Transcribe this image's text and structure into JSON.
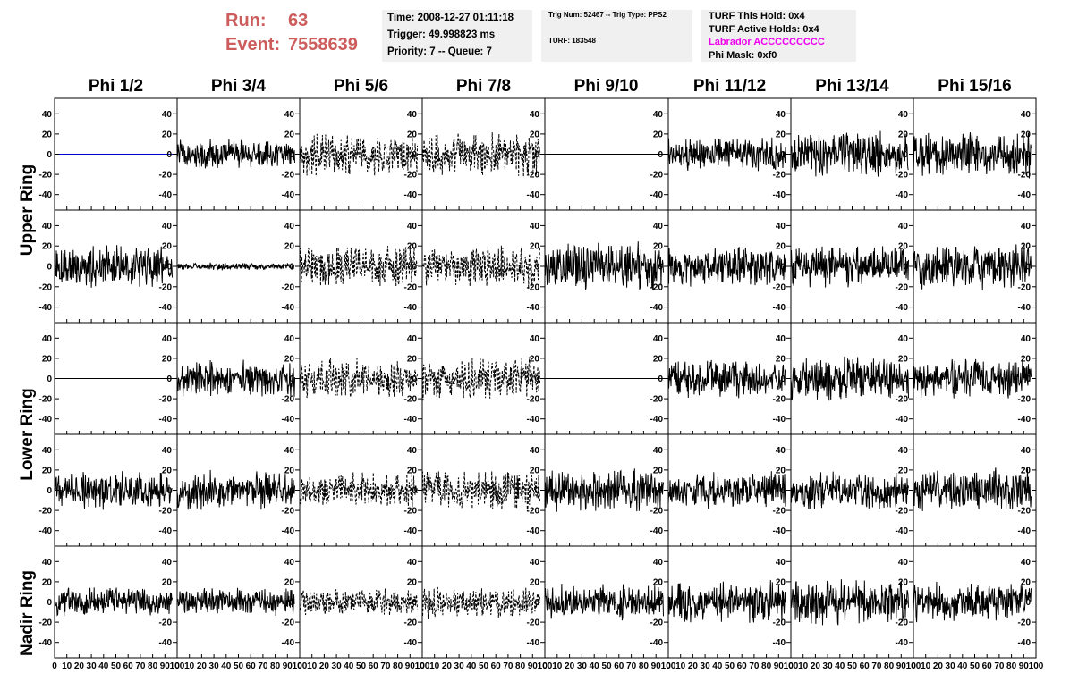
{
  "header": {
    "run_label": "Run:",
    "run_value": "63",
    "event_label": "Event:",
    "event_value": "7558639",
    "time": "Time: 2008-12-27 01:11:18",
    "trigger": "Trigger: 49.998823 ms",
    "priority": "Priority: 7 -- Queue: 7",
    "trig_num": "Trig Num: 52467 -- Trig Type: PPS2",
    "turf": "TURF: 183548",
    "turf_this_hold": "TURF This Hold: 0x4",
    "turf_active_holds": "TURF Active Holds: 0x4",
    "labrador": "Labrador ACCCCCCCCC",
    "phi_mask": "Phi Mask: 0xf0"
  },
  "colors": {
    "run_text": "#cd5c5c",
    "labrador_text": "#ee00ee",
    "flat_trace": "#0000cc",
    "trace": "#000000",
    "info_bg": "#f0f0f0"
  },
  "row_labels": [
    {
      "text": "Upper Ring",
      "rows": [
        0,
        1
      ]
    },
    {
      "text": "Lower Ring",
      "rows": [
        2,
        3
      ]
    },
    {
      "text": "Nadir Ring",
      "rows": [
        4
      ]
    }
  ],
  "chart_data": {
    "type": "line",
    "title": "",
    "columns": [
      "Phi 1/2",
      "Phi 3/4",
      "Phi 5/6",
      "Phi 7/8",
      "Phi 9/10",
      "Phi 11/12",
      "Phi 13/14",
      "Phi 15/16"
    ],
    "rows": 5,
    "xlim": [
      0,
      100
    ],
    "ylim": [
      -50,
      50
    ],
    "x_ticks": [
      0,
      10,
      20,
      30,
      40,
      50,
      60,
      70,
      80,
      90,
      100
    ],
    "y_ticks": [
      -40,
      -20,
      0,
      20,
      40
    ],
    "x_tick_labels": [
      "0",
      "10",
      "20",
      "30",
      "40",
      "50",
      "60",
      "70",
      "80",
      "90",
      "100"
    ],
    "y_tick_labels": [
      "-40",
      "-20",
      "0",
      "20",
      "40"
    ],
    "trace_samples": 260,
    "trace_x_range": [
      0,
      96
    ],
    "panels": [
      [
        {
          "col": "Phi 1/2",
          "style": "flat",
          "color": "#0000cc",
          "amp": 0
        },
        {
          "col": "Phi 3/4",
          "style": "solid",
          "amp": 10
        },
        {
          "col": "Phi 5/6",
          "style": "dashed",
          "amp": 15
        },
        {
          "col": "Phi 7/8",
          "style": "dashed",
          "amp": 14
        },
        {
          "col": "Phi 9/10",
          "style": "flat",
          "color": "#000000",
          "amp": 0
        },
        {
          "col": "Phi 11/12",
          "style": "solid",
          "amp": 12
        },
        {
          "col": "Phi 13/14",
          "style": "solid",
          "amp": 15
        },
        {
          "col": "Phi 15/16",
          "style": "solid",
          "amp": 15
        }
      ],
      [
        {
          "col": "Phi 1/2",
          "style": "solid",
          "amp": 14
        },
        {
          "col": "Phi 3/4",
          "style": "solid",
          "amp": 2.5
        },
        {
          "col": "Phi 5/6",
          "style": "dashed",
          "amp": 14
        },
        {
          "col": "Phi 7/8",
          "style": "dashed",
          "amp": 14
        },
        {
          "col": "Phi 9/10",
          "style": "solid",
          "amp": 16
        },
        {
          "col": "Phi 11/12",
          "style": "solid",
          "amp": 13
        },
        {
          "col": "Phi 13/14",
          "style": "solid",
          "amp": 14
        },
        {
          "col": "Phi 15/16",
          "style": "solid",
          "amp": 15
        }
      ],
      [
        {
          "col": "Phi 1/2",
          "style": "flat",
          "color": "#000000",
          "amp": 0
        },
        {
          "col": "Phi 3/4",
          "style": "solid",
          "amp": 12
        },
        {
          "col": "Phi 5/6",
          "style": "dashed",
          "amp": 13
        },
        {
          "col": "Phi 7/8",
          "style": "dashed",
          "amp": 14
        },
        {
          "col": "Phi 9/10",
          "style": "flat",
          "color": "#000000",
          "amp": 0
        },
        {
          "col": "Phi 11/12",
          "style": "solid",
          "amp": 13
        },
        {
          "col": "Phi 13/14",
          "style": "solid",
          "amp": 15
        },
        {
          "col": "Phi 15/16",
          "style": "solid",
          "amp": 13
        }
      ],
      [
        {
          "col": "Phi 1/2",
          "style": "solid",
          "amp": 13
        },
        {
          "col": "Phi 3/4",
          "style": "solid",
          "amp": 13
        },
        {
          "col": "Phi 5/6",
          "style": "dashed",
          "amp": 12
        },
        {
          "col": "Phi 7/8",
          "style": "dashed",
          "amp": 14
        },
        {
          "col": "Phi 9/10",
          "style": "solid",
          "amp": 14
        },
        {
          "col": "Phi 11/12",
          "style": "solid",
          "amp": 12
        },
        {
          "col": "Phi 13/14",
          "style": "solid",
          "amp": 13
        },
        {
          "col": "Phi 15/16",
          "style": "solid",
          "amp": 14
        }
      ],
      [
        {
          "col": "Phi 1/2",
          "style": "solid",
          "amp": 10
        },
        {
          "col": "Phi 3/4",
          "style": "solid",
          "amp": 9
        },
        {
          "col": "Phi 5/6",
          "style": "dashed",
          "amp": 9
        },
        {
          "col": "Phi 7/8",
          "style": "dashed",
          "amp": 11
        },
        {
          "col": "Phi 9/10",
          "style": "solid",
          "amp": 12
        },
        {
          "col": "Phi 11/12",
          "style": "solid",
          "amp": 14
        },
        {
          "col": "Phi 13/14",
          "style": "solid",
          "amp": 15
        },
        {
          "col": "Phi 15/16",
          "style": "solid",
          "amp": 13
        }
      ]
    ]
  }
}
